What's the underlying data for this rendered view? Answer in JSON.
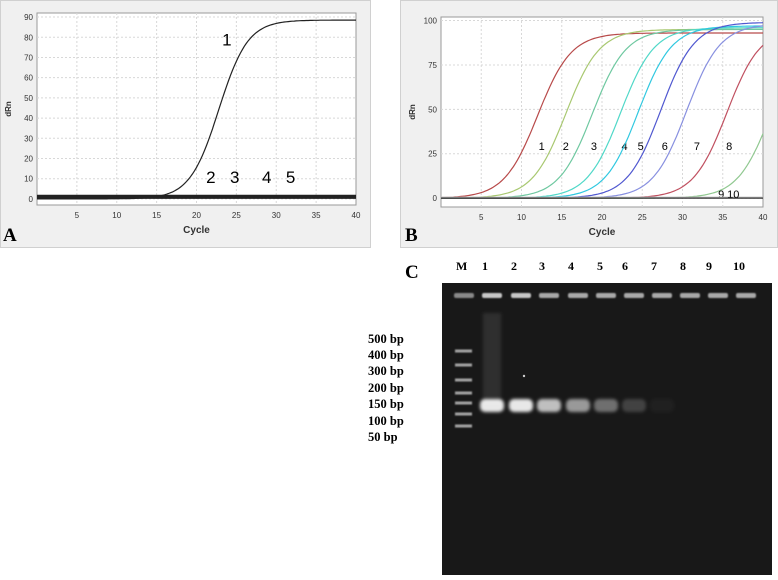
{
  "chart_data": [
    {
      "panel": "A",
      "type": "line",
      "xlabel": "Cycle",
      "ylabel": "dRn",
      "xlim": [
        0,
        40
      ],
      "ylim": [
        -3,
        92
      ],
      "xticks": [
        5,
        10,
        15,
        20,
        25,
        30,
        35,
        40
      ],
      "yticks": [
        0,
        10,
        20,
        30,
        40,
        50,
        60,
        70,
        80,
        90
      ],
      "grid": true,
      "series": [
        {
          "label": "1",
          "color": "#222222",
          "midpoint": 22.8,
          "slope": 0.55,
          "plateau": 88.5,
          "baseline": 0,
          "label_pos": [
            23.8,
            76
          ]
        },
        {
          "label": "2",
          "color": "#222222",
          "flat": 0.6,
          "label_pos": [
            21.8,
            8
          ]
        },
        {
          "label": "3",
          "color": "#222222",
          "flat": 1.0,
          "label_pos": [
            24.8,
            8
          ]
        },
        {
          "label": "4",
          "color": "#222222",
          "flat": 1.4,
          "label_pos": [
            28.8,
            8
          ]
        },
        {
          "label": "5",
          "color": "#222222",
          "flat": 1.8,
          "label_pos": [
            31.8,
            8
          ]
        }
      ]
    },
    {
      "panel": "B",
      "type": "line",
      "xlabel": "Cycle",
      "ylabel": "dRn",
      "xlim": [
        0,
        40
      ],
      "ylim": [
        -5,
        102
      ],
      "xticks": [
        5,
        10,
        15,
        20,
        25,
        30,
        35,
        40
      ],
      "yticks": [
        0,
        25,
        50,
        75,
        100
      ],
      "grid": true,
      "series": [
        {
          "label": "1",
          "color": "#b84a4a",
          "midpoint": 12.0,
          "slope": 0.48,
          "plateau": 93,
          "label_pos": [
            12.5,
            27
          ]
        },
        {
          "label": "2",
          "color": "#a8c870",
          "midpoint": 15.5,
          "slope": 0.48,
          "plateau": 95,
          "label_pos": [
            15.5,
            27
          ]
        },
        {
          "label": "3",
          "color": "#6ec8a0",
          "midpoint": 18.8,
          "slope": 0.48,
          "plateau": 95,
          "label_pos": [
            19.0,
            27
          ]
        },
        {
          "label": "4",
          "color": "#50d8c8",
          "midpoint": 22.3,
          "slope": 0.48,
          "plateau": 96,
          "label_pos": [
            22.8,
            27
          ]
        },
        {
          "label": "5",
          "color": "#30c8e0",
          "midpoint": 24.5,
          "slope": 0.48,
          "plateau": 97,
          "label_pos": [
            24.8,
            27
          ]
        },
        {
          "label": "6",
          "color": "#5058d0",
          "midpoint": 27.3,
          "slope": 0.48,
          "plateau": 99,
          "label_pos": [
            27.8,
            27
          ]
        },
        {
          "label": "7",
          "color": "#8890e0",
          "midpoint": 30.5,
          "slope": 0.48,
          "plateau": 98,
          "label_pos": [
            31.8,
            27
          ]
        },
        {
          "label": "8",
          "color": "#c05060",
          "midpoint": 35.5,
          "slope": 0.48,
          "plateau": 96,
          "label_pos": [
            35.8,
            27
          ]
        },
        {
          "label": "9",
          "color": "#90c890",
          "midpoint": 41.0,
          "slope": 0.48,
          "plateau": 95,
          "label_pos": [
            34.8,
            0
          ]
        },
        {
          "label": "10",
          "color": "#c0c0c0",
          "flat": 0.5,
          "label_pos": [
            36.3,
            0
          ]
        }
      ]
    }
  ],
  "panel_letters": {
    "a": "A",
    "b": "B",
    "c": "C"
  },
  "gel": {
    "lane_labels": [
      "M",
      "1",
      "2",
      "3",
      "4",
      "5",
      "6",
      "7",
      "8",
      "9",
      "10"
    ],
    "ladder_labels": [
      "500 bp",
      "400 bp",
      "300 bp",
      "200 bp",
      "150 bp",
      "100 bp",
      "50 bp"
    ],
    "band_intensity": [
      1.0,
      1.0,
      0.8,
      0.62,
      0.42,
      0.2,
      0.04,
      0,
      0,
      0
    ]
  }
}
